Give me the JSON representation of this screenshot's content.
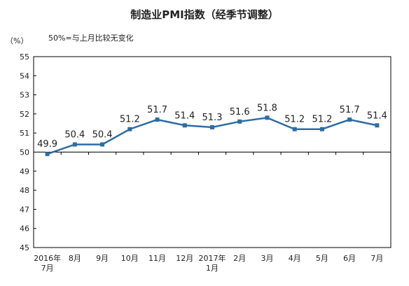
{
  "chart_data": {
    "type": "line",
    "title": "制造业PMI指数（经季节调整）",
    "ylabel": "（%）",
    "annotation": "50%=与上月比较无变化",
    "ylim": [
      45,
      55
    ],
    "yticks": [
      45,
      46,
      47,
      48,
      49,
      50,
      51,
      52,
      53,
      54,
      55
    ],
    "reference_line": 50,
    "grid": false,
    "categories": [
      [
        "2016年",
        "7月"
      ],
      [
        "8月"
      ],
      [
        "9月"
      ],
      [
        "10月"
      ],
      [
        "11月"
      ],
      [
        "12月"
      ],
      [
        "2017年",
        "1月"
      ],
      [
        "2月"
      ],
      [
        "3月"
      ],
      [
        "4月"
      ],
      [
        "5月"
      ],
      [
        "6月"
      ],
      [
        "7月"
      ]
    ],
    "values": [
      49.9,
      50.4,
      50.4,
      51.2,
      51.7,
      51.4,
      51.3,
      51.6,
      51.8,
      51.2,
      51.2,
      51.7,
      51.4
    ],
    "data_labels": [
      "49.9",
      "50.4",
      "50.4",
      "51.2",
      "51.7",
      "51.4",
      "51.3",
      "51.6",
      "51.8",
      "51.2",
      "51.2",
      "51.7",
      "51.4"
    ],
    "line_color": "#2E6CA4",
    "axis_color": "#000000"
  }
}
